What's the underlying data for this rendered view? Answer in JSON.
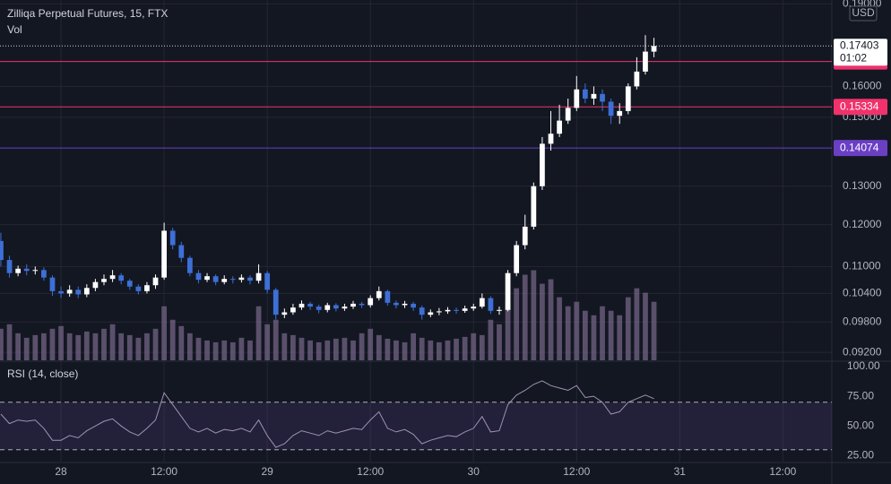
{
  "chart_data": {
    "type": "candlestick",
    "title": "Zilliqa Perpetual Futures, 15, FTX",
    "volume_label": "Vol",
    "currency": "USD",
    "x": [
      17,
      18,
      19,
      20,
      21,
      22,
      23,
      24,
      25,
      26,
      27,
      28,
      29,
      30,
      31,
      32,
      33,
      34,
      35,
      36,
      37,
      38,
      39,
      40,
      41,
      42,
      43,
      44,
      45,
      46,
      47,
      48,
      49,
      50,
      51,
      52,
      53,
      54,
      55,
      56,
      57,
      58,
      59,
      60,
      61,
      62,
      63,
      64,
      65,
      66,
      67,
      68,
      69,
      70,
      71,
      72,
      73,
      74,
      75,
      76,
      77,
      78,
      79,
      80,
      81,
      82,
      83,
      84,
      85,
      86,
      87,
      88,
      89,
      90,
      91,
      92,
      93
    ],
    "xlim": [
      16.9,
      113.7
    ],
    "xticks": [
      {
        "value": 24,
        "label": "28"
      },
      {
        "value": 36,
        "label": "12:00"
      },
      {
        "value": 48,
        "label": "29"
      },
      {
        "value": 60,
        "label": "12:00"
      },
      {
        "value": 72,
        "label": "30"
      },
      {
        "value": 84,
        "label": "12:00"
      },
      {
        "value": 96,
        "label": "31"
      },
      {
        "value": 108,
        "label": "12:00"
      }
    ],
    "ylim": [
      0.0905,
      0.1915
    ],
    "log_scale": true,
    "yticks": [
      {
        "value": 0.19,
        "label": "0.19000"
      },
      {
        "value": 0.16,
        "label": "0.16000"
      },
      {
        "value": 0.15,
        "label": "0.15000"
      },
      {
        "value": 0.13,
        "label": "0.13000"
      },
      {
        "value": 0.12,
        "label": "0.12000"
      },
      {
        "value": 0.11,
        "label": "0.11000"
      },
      {
        "value": 0.104,
        "label": "0.10400"
      },
      {
        "value": 0.098,
        "label": "0.09800"
      },
      {
        "value": 0.092,
        "label": "0.09200"
      }
    ],
    "grid": true,
    "up_color": "#ffffff",
    "down_color": "#3d6fd6",
    "open": [
      0.116,
      0.1115,
      0.1085,
      0.1095,
      0.109,
      0.1092,
      0.1075,
      0.1045,
      0.104,
      0.1048,
      0.1038,
      0.1052,
      0.1065,
      0.1072,
      0.108,
      0.1068,
      0.1055,
      0.1045,
      0.1058,
      0.1075,
      0.1185,
      0.115,
      0.112,
      0.1085,
      0.107,
      0.1078,
      0.1065,
      0.1072,
      0.107,
      0.1075,
      0.1068,
      0.1085,
      0.1048,
      0.0995,
      0.1,
      0.101,
      0.1018,
      0.1012,
      0.1005,
      0.1015,
      0.1008,
      0.1012,
      0.1018,
      0.1015,
      0.103,
      0.1045,
      0.102,
      0.1015,
      0.1018,
      0.101,
      0.0995,
      0.1,
      0.1002,
      0.1005,
      0.1003,
      0.1008,
      0.1012,
      0.103,
      0.1003,
      0.1005,
      0.1085,
      0.115,
      0.1195,
      0.13,
      0.142,
      0.145,
      0.149,
      0.153,
      0.159,
      0.156,
      0.1575,
      0.155,
      0.1505,
      0.152,
      0.16,
      0.165,
      0.172
    ],
    "high": [
      0.118,
      0.1125,
      0.1102,
      0.1105,
      0.11,
      0.1098,
      0.108,
      0.1055,
      0.1058,
      0.1055,
      0.106,
      0.1072,
      0.1082,
      0.1092,
      0.1085,
      0.1072,
      0.106,
      0.1065,
      0.1082,
      0.1205,
      0.1192,
      0.1158,
      0.1125,
      0.1092,
      0.1085,
      0.1082,
      0.108,
      0.1078,
      0.1082,
      0.108,
      0.1105,
      0.109,
      0.1052,
      0.1008,
      0.1018,
      0.1025,
      0.1022,
      0.1016,
      0.102,
      0.1019,
      0.1018,
      0.1024,
      0.1022,
      0.1036,
      0.1055,
      0.1048,
      0.1025,
      0.1024,
      0.1022,
      0.1014,
      0.1006,
      0.1009,
      0.1011,
      0.101,
      0.1014,
      0.1018,
      0.104,
      0.1034,
      0.1012,
      0.1092,
      0.116,
      0.1225,
      0.131,
      0.144,
      0.152,
      0.154,
      0.156,
      0.1635,
      0.161,
      0.16,
      0.159,
      0.156,
      0.1545,
      0.161,
      0.17,
      0.178,
      0.177
    ],
    "low": [
      0.11,
      0.1075,
      0.1078,
      0.108,
      0.1082,
      0.1068,
      0.1035,
      0.103,
      0.1033,
      0.103,
      0.1032,
      0.1045,
      0.1058,
      0.1065,
      0.106,
      0.1048,
      0.1038,
      0.104,
      0.105,
      0.107,
      0.114,
      0.111,
      0.1078,
      0.1062,
      0.1065,
      0.1058,
      0.106,
      0.1062,
      0.1064,
      0.106,
      0.1062,
      0.104,
      0.0985,
      0.0988,
      0.0995,
      0.1005,
      0.1005,
      0.0998,
      0.1,
      0.1002,
      0.1003,
      0.1007,
      0.1009,
      0.101,
      0.1025,
      0.1014,
      0.1008,
      0.1009,
      0.1003,
      0.0985,
      0.099,
      0.0994,
      0.0997,
      0.0997,
      0.0999,
      0.1003,
      0.1008,
      0.0997,
      0.0995,
      0.1002,
      0.1078,
      0.114,
      0.1188,
      0.129,
      0.14,
      0.144,
      0.148,
      0.152,
      0.1545,
      0.154,
      0.152,
      0.148,
      0.148,
      0.151,
      0.159,
      0.164,
      0.17
    ],
    "close": [
      0.1115,
      0.1085,
      0.1095,
      0.109,
      0.1092,
      0.1075,
      0.1045,
      0.104,
      0.1048,
      0.1038,
      0.1052,
      0.1065,
      0.1072,
      0.108,
      0.1068,
      0.1055,
      0.1045,
      0.1058,
      0.1075,
      0.1185,
      0.115,
      0.112,
      0.1085,
      0.107,
      0.1078,
      0.1065,
      0.1072,
      0.107,
      0.1075,
      0.1068,
      0.1085,
      0.1048,
      0.0995,
      0.1,
      0.101,
      0.1018,
      0.1012,
      0.1005,
      0.1015,
      0.1008,
      0.1012,
      0.1018,
      0.1015,
      0.103,
      0.1045,
      0.102,
      0.1015,
      0.1018,
      0.101,
      0.0995,
      0.1,
      0.1002,
      0.1005,
      0.1003,
      0.1008,
      0.1012,
      0.103,
      0.1003,
      0.1005,
      0.1085,
      0.115,
      0.1195,
      0.13,
      0.142,
      0.145,
      0.149,
      0.153,
      0.159,
      0.156,
      0.1575,
      0.155,
      0.1505,
      0.152,
      0.16,
      0.165,
      0.172,
      0.17403
    ],
    "volume": {
      "color": "#7b6a8c",
      "ylim": [
        0,
        400
      ],
      "values": [
        35,
        40,
        30,
        25,
        28,
        30,
        35,
        38,
        30,
        28,
        32,
        30,
        35,
        40,
        30,
        28,
        25,
        30,
        35,
        60,
        45,
        38,
        30,
        25,
        22,
        20,
        22,
        20,
        25,
        22,
        60,
        40,
        45,
        30,
        28,
        25,
        22,
        20,
        22,
        24,
        25,
        22,
        30,
        35,
        28,
        24,
        22,
        20,
        30,
        25,
        22,
        20,
        22,
        24,
        26,
        30,
        28,
        45,
        40,
        65,
        80,
        95,
        100,
        85,
        90,
        70,
        60,
        65,
        55,
        50,
        60,
        55,
        50,
        70,
        80,
        75,
        65
      ]
    },
    "price_lines": [
      {
        "value": 0.16849,
        "color": "#f0326c"
      },
      {
        "value": 0.15334,
        "color": "#f0326c"
      },
      {
        "value": 0.14074,
        "color": "#6a3fc4"
      }
    ],
    "last_price": {
      "value": 0.17403,
      "countdown": "01:02"
    },
    "rsi": {
      "title": "RSI (14, close)",
      "color": "#9f92b5",
      "ylim": [
        20,
        103.8
      ],
      "bands": [
        30,
        70
      ],
      "yticks": [
        {
          "value": 100,
          "label": "100.00"
        },
        {
          "value": 75,
          "label": "75.00"
        },
        {
          "value": 50,
          "label": "50.00"
        },
        {
          "value": 25,
          "label": "25.00"
        }
      ],
      "values": [
        60,
        52,
        55,
        54,
        55,
        48,
        38,
        38,
        42,
        40,
        46,
        50,
        54,
        56,
        50,
        45,
        42,
        48,
        55,
        78,
        68,
        58,
        48,
        45,
        48,
        44,
        47,
        46,
        48,
        45,
        55,
        42,
        32,
        35,
        42,
        46,
        44,
        42,
        46,
        44,
        46,
        48,
        47,
        55,
        62,
        48,
        45,
        47,
        43,
        35,
        38,
        40,
        42,
        41,
        45,
        48,
        58,
        45,
        46,
        68,
        76,
        80,
        85,
        88,
        84,
        82,
        80,
        84,
        74,
        75,
        70,
        60,
        62,
        70,
        73,
        76,
        73
      ]
    }
  }
}
